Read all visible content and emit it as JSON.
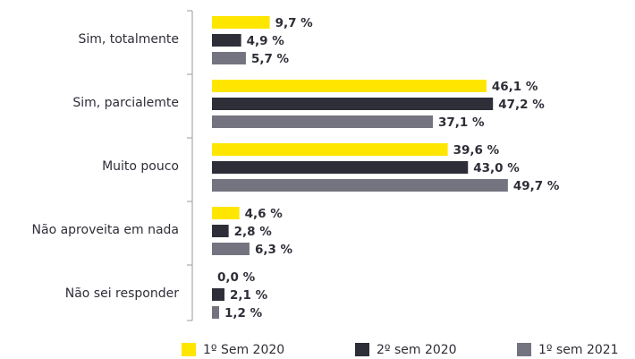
{
  "chart_data": {
    "type": "hbar",
    "categories": [
      "Sim, totalmente",
      "Sim, parcialemte",
      "Muito pouco",
      "Não aproveita em nada",
      "Não sei responder"
    ],
    "series": [
      {
        "name": "1º Sem 2020",
        "color": "#ffe600",
        "values": [
          9.7,
          46.1,
          39.6,
          4.6,
          0.0
        ],
        "value_labels": [
          "9,7 %",
          "46,1 %",
          "39,6 %",
          "4,6 %",
          "0,0 %"
        ]
      },
      {
        "name": "2º sem 2020",
        "color": "#2e2e38",
        "values": [
          4.9,
          47.2,
          43.0,
          2.8,
          2.1
        ],
        "value_labels": [
          "4,9 %",
          "47,2 %",
          "43,0 %",
          "2,8 %",
          "2,1 %"
        ]
      },
      {
        "name": "1º sem 2021",
        "color": "#747480",
        "values": [
          5.7,
          37.1,
          49.7,
          6.3,
          1.2
        ],
        "value_labels": [
          "5,7 %",
          "37,1 %",
          "49,7 %",
          "6,3 %",
          "1,2 %"
        ]
      }
    ],
    "xlim": [
      0,
      70
    ],
    "legend": "bottom"
  }
}
